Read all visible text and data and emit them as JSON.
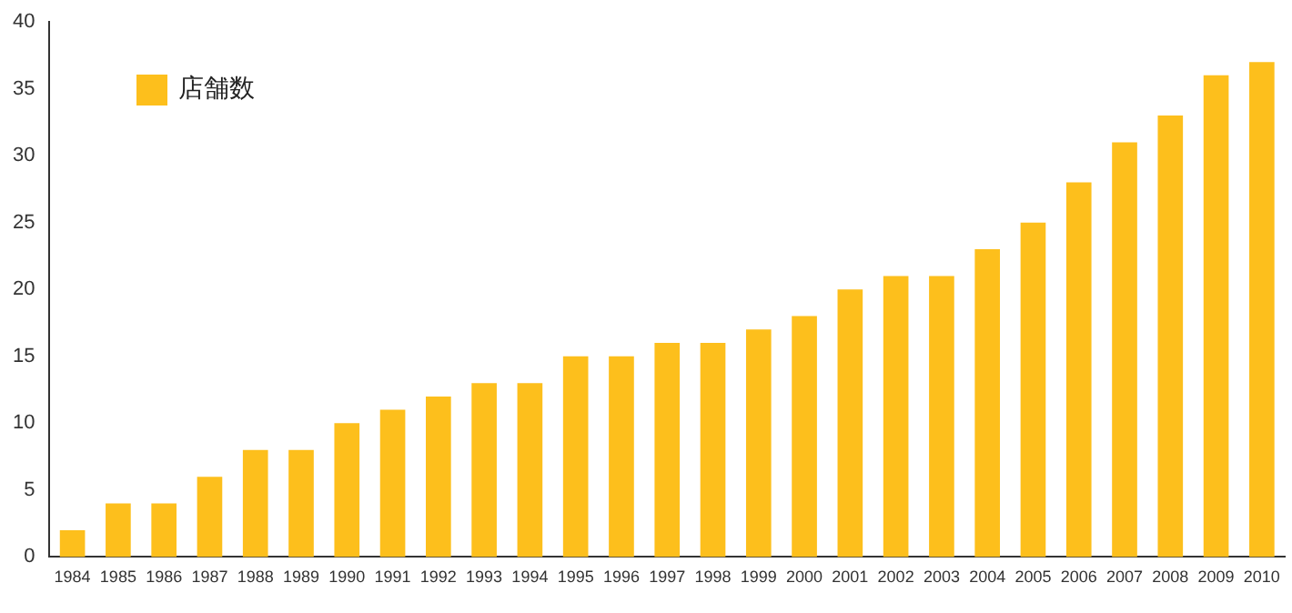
{
  "chart_data": {
    "type": "bar",
    "categories": [
      "1984",
      "1985",
      "1986",
      "1987",
      "1988",
      "1989",
      "1990",
      "1991",
      "1992",
      "1993",
      "1994",
      "1995",
      "1996",
      "1997",
      "1998",
      "1999",
      "2000",
      "2001",
      "2002",
      "2003",
      "2004",
      "2005",
      "2006",
      "2007",
      "2008",
      "2009",
      "2010"
    ],
    "series": [
      {
        "name": "店舗数",
        "color": "#fdbf1c",
        "values": [
          2,
          4,
          4,
          6,
          8,
          8,
          10,
          11,
          12,
          13,
          13,
          15,
          15,
          16,
          16,
          17,
          18,
          20,
          21,
          21,
          23,
          25,
          28,
          31,
          33,
          36,
          37
        ]
      }
    ],
    "ylim": [
      0,
      40
    ],
    "yticks": [
      0,
      5,
      10,
      15,
      20,
      25,
      30,
      35,
      40
    ],
    "grid": false,
    "legend": "top left"
  }
}
